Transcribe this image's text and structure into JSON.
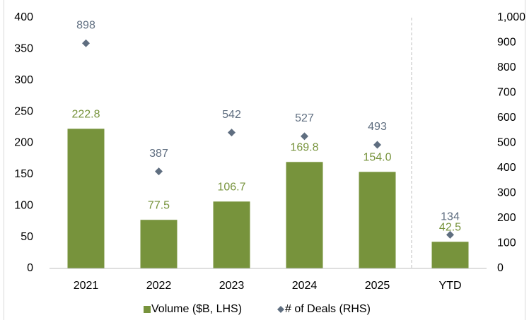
{
  "chart_data": {
    "type": "bar",
    "categories": [
      "2021",
      "2022",
      "2023",
      "2024",
      "2025",
      "YTD"
    ],
    "series": [
      {
        "name": "Volume ($B, LHS)",
        "color": "#77933c",
        "values": [
          222.8,
          77.5,
          106.7,
          169.8,
          154.0,
          42.5
        ],
        "value_labels": [
          "222.8",
          "77.5",
          "106.7",
          "169.8",
          "154.0",
          "42.5"
        ]
      },
      {
        "name": "# of Deals (RHS)",
        "type": "scatter",
        "marker": "diamond",
        "color": "#5f6e80",
        "axis": "y2",
        "values": [
          898,
          387,
          542,
          527,
          493,
          134
        ]
      }
    ],
    "ylim": [
      0,
      400
    ],
    "yticks": [
      0,
      50,
      100,
      150,
      200,
      250,
      300,
      350,
      400
    ],
    "y2lim": [
      0,
      1000
    ],
    "y2ticks": [
      0,
      100,
      200,
      300,
      400,
      500,
      600,
      700,
      800,
      900,
      {
        "value": 1000,
        "label": "1,000"
      }
    ],
    "legend": "bottom"
  }
}
